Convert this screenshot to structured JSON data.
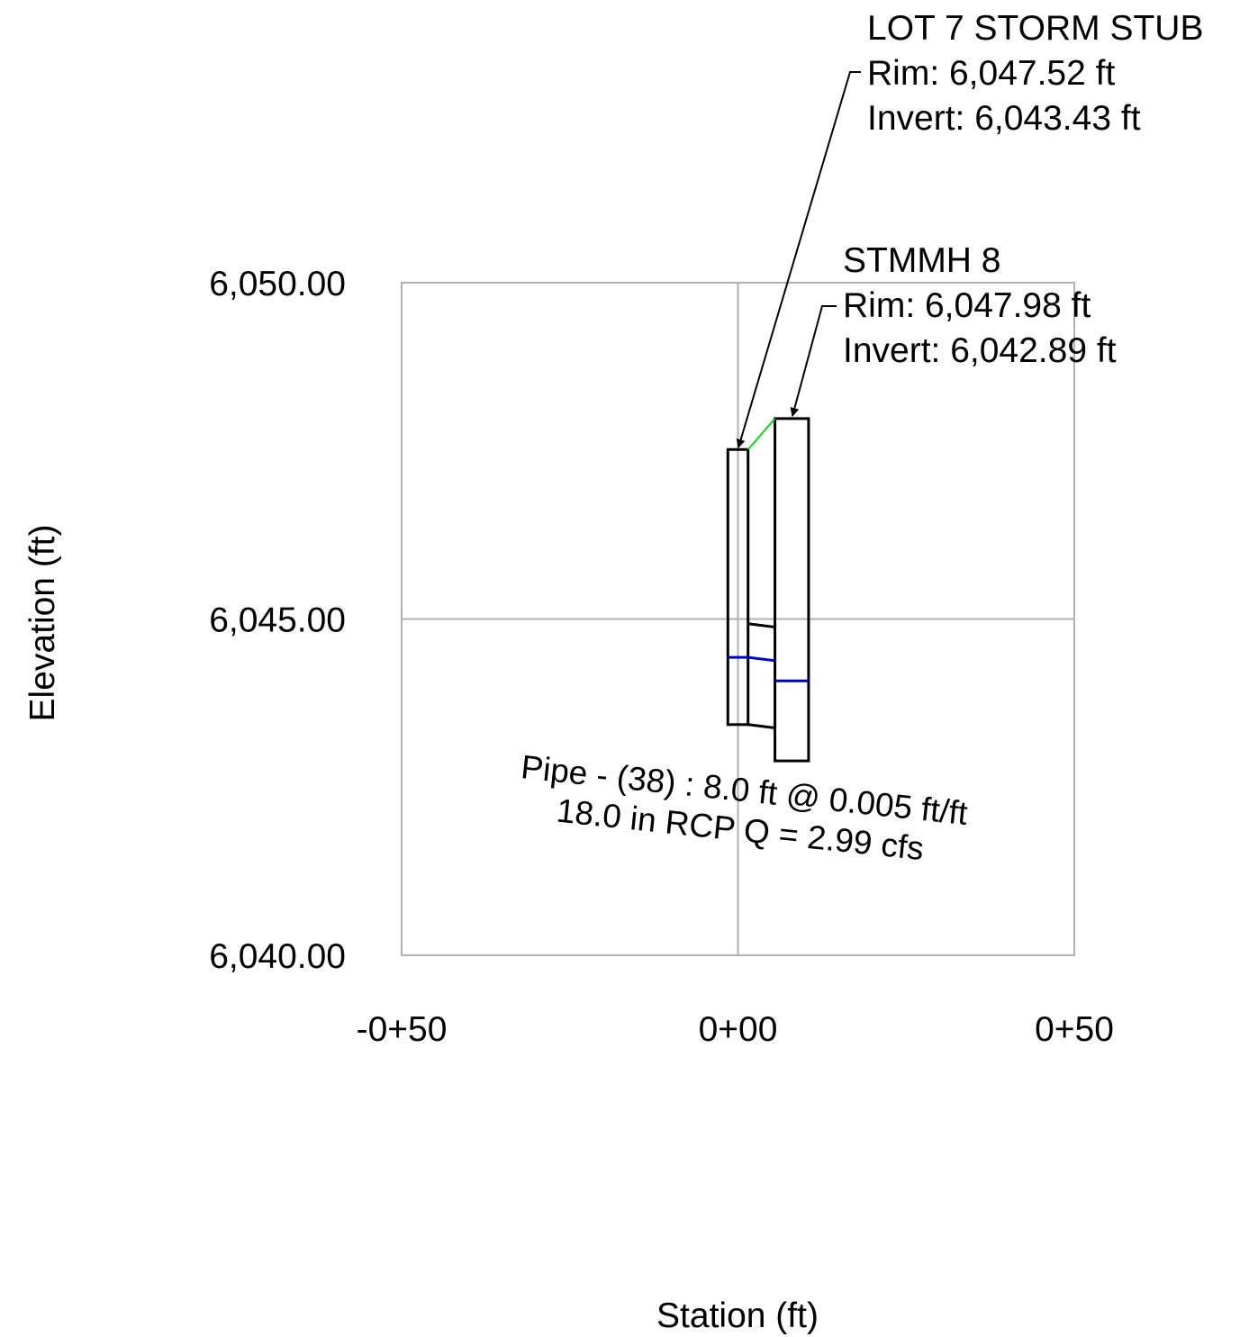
{
  "axes": {
    "x_title": "Station (ft)",
    "y_title": "Elevation (ft)",
    "x_ticks": [
      {
        "value": -50,
        "label": "-0+50"
      },
      {
        "value": 0,
        "label": "0+00"
      },
      {
        "value": 50,
        "label": "0+50"
      }
    ],
    "y_ticks": [
      {
        "value": 6050,
        "label": "6,050.00"
      },
      {
        "value": 6045,
        "label": "6,045.00"
      },
      {
        "value": 6040,
        "label": "6,040.00"
      }
    ],
    "xlim": [
      -50,
      50
    ],
    "ylim": [
      6040,
      6050
    ],
    "grid": true
  },
  "structures": [
    {
      "id": "lot7",
      "name": "LOT 7 STORM STUB",
      "rim_text": "Rim: 6,047.52 ft",
      "invert_text": "Invert: 6,043.43 ft",
      "station_left": -1.5,
      "station_right": 1.5,
      "rim": 6047.52,
      "bottom": 6043.43,
      "hgl": 6044.43
    },
    {
      "id": "stmmh8",
      "name": "STMMH 8",
      "rim_text": "Rim: 6,047.98 ft",
      "invert_text": "Invert: 6,042.89 ft",
      "station_left": 5.5,
      "station_right": 10.5,
      "rim": 6047.98,
      "bottom": 6042.89,
      "hgl": 6044.08
    }
  ],
  "pipe": {
    "label_line1": "Pipe - (38) : 8.0 ft @ 0.005 ft/ft",
    "label_line2": "18.0 in RCP Q = 2.99 cfs",
    "station_start": 1.5,
    "station_end": 5.5,
    "invert_up": 6043.43,
    "invert_down": 6043.38,
    "crown_up": 6044.93,
    "crown_down": 6044.88,
    "hgl_up": 6044.43,
    "hgl_down": 6044.38,
    "ground_up": 6047.52,
    "ground_down": 6047.98
  },
  "colors": {
    "grid": "#b0b0b0",
    "structure": "#000000",
    "hgl": "#0000d0",
    "ground": "#00e000"
  }
}
